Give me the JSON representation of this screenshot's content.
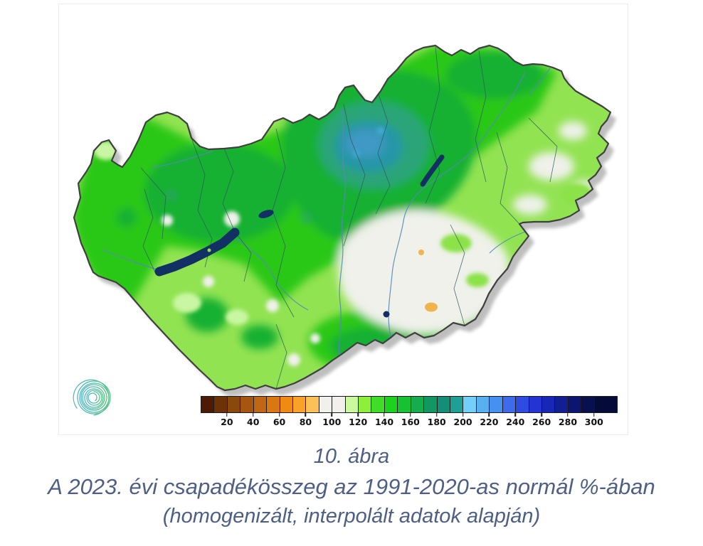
{
  "figure": {
    "number": "10. ábra",
    "title": "A 2023. évi csapadékösszeg az 1991-2020-as normál %-ában",
    "subtitle": "(homogenizált, interpolált adatok alapján)",
    "caption_color": "#4e5f85"
  },
  "legend": {
    "tick_labels": [
      "20",
      "40",
      "60",
      "80",
      "100",
      "120",
      "140",
      "160",
      "180",
      "200",
      "220",
      "240",
      "260",
      "280",
      "300"
    ],
    "segment_colors": [
      "#4e1a03",
      "#6d3306",
      "#8a490c",
      "#a55711",
      "#c06715",
      "#d97713",
      "#ef8b12",
      "#f8a229",
      "#fbc058",
      "#f1f0ec",
      "#f1f0ec",
      "#cdf99e",
      "#8dee3b",
      "#3fdd27",
      "#1bd31f",
      "#17c232",
      "#15ad4d",
      "#129763",
      "#138f78",
      "#1f9f96",
      "#74cff8",
      "#58b0f3",
      "#4590f0",
      "#3d6bec",
      "#2f4ce2",
      "#2334d2",
      "#1a27b6",
      "#121e94",
      "#0c1672",
      "#081050",
      "#050b38"
    ]
  },
  "map_palette": {
    "base_white": "#eff1ea",
    "green_bright": "#2cc816",
    "green_medium": "#12b033",
    "green_light": "#8ce24a",
    "green_pale": "#c9f6a2",
    "teal_anomaly": "#2fa37e",
    "teal_mid": "#2796a8",
    "teal_core": "#3f98c4",
    "teal_spot": "#3fa9cf",
    "lake_navy": "#123063",
    "dry_orange": "#f2b24e",
    "river_blue": "#5588bb",
    "boundary_dark": "#2f555e",
    "outline": "#3f3f3f",
    "shadow": "#8a8a8a"
  },
  "logo": {
    "icon": "spiral-logo-icon",
    "gradient_start": "#52b7c6",
    "gradient_end": "#55c487"
  }
}
